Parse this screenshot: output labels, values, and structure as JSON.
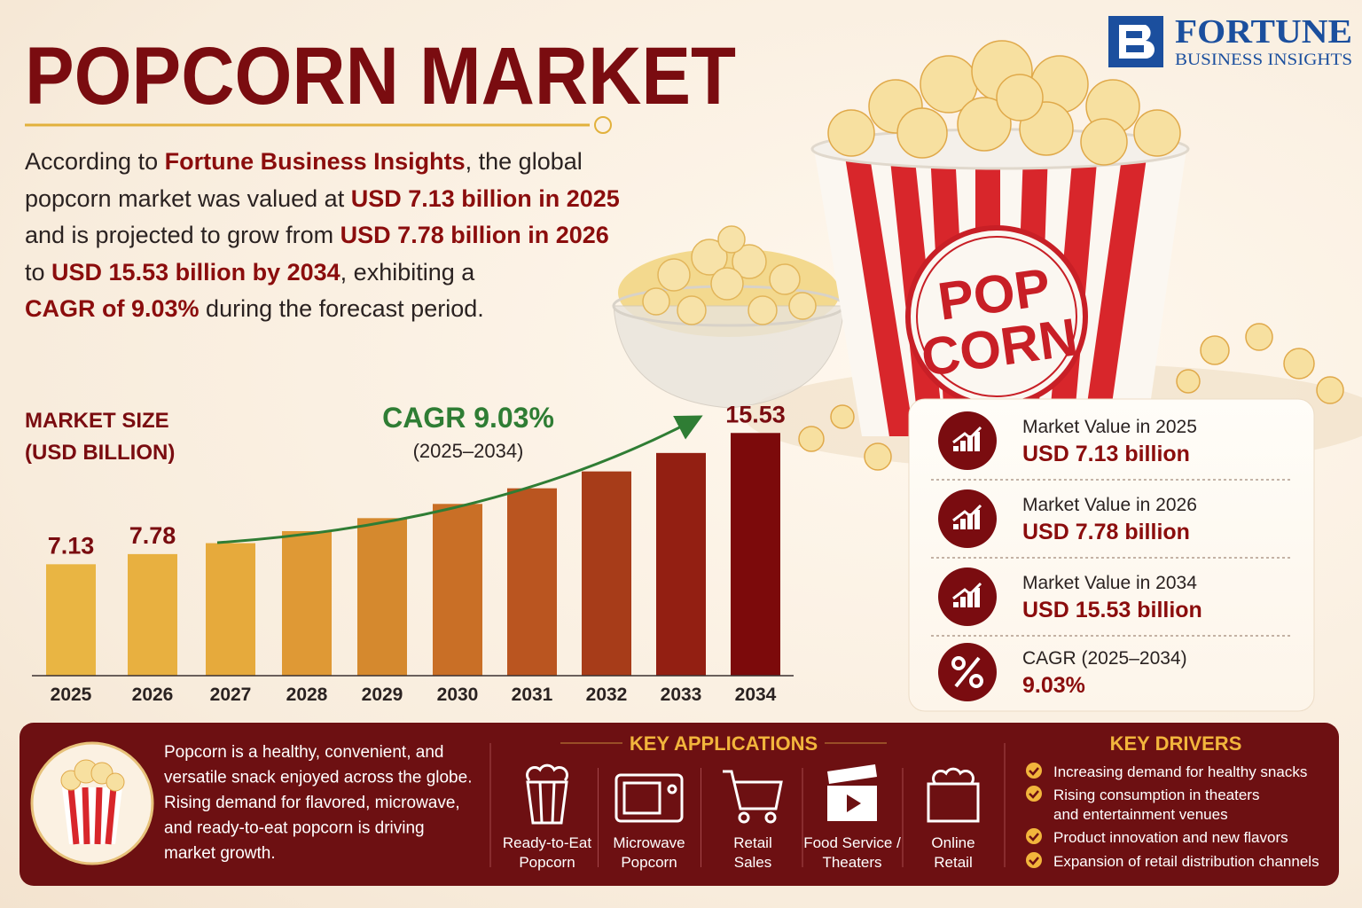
{
  "header": {
    "title": "POPCORN MARKET"
  },
  "logo": {
    "name": "FORTUNE",
    "tagline": "BUSINESS INSIGHTS"
  },
  "intro": [
    [
      {
        "text": "According to "
      },
      {
        "text": "Fortune Business Insights",
        "highlight": true
      },
      {
        "text": ", the global"
      }
    ],
    [
      {
        "text": "popcorn market was valued at "
      },
      {
        "text": "USD 7.13 billion in 2025",
        "highlight": true
      }
    ],
    [
      {
        "text": "and is projected to grow from "
      },
      {
        "text": "USD 7.78 billion in 2026",
        "highlight": true
      }
    ],
    [
      {
        "text": "to "
      },
      {
        "text": "USD 15.53 billion by 2034",
        "highlight": true
      },
      {
        "text": ", exhibiting a"
      }
    ],
    [
      {
        "text": "CAGR of 9.03%",
        "highlight": true
      },
      {
        "text": " during the forecast period."
      }
    ]
  ],
  "image": {
    "bucket_text": [
      "POP",
      "CORN"
    ]
  },
  "chart_data": {
    "type": "bar",
    "y_label": [
      "MARKET SIZE",
      "(USD BILLION)"
    ],
    "categories": [
      "2025",
      "2026",
      "2027",
      "2028",
      "2029",
      "2030",
      "2031",
      "2032",
      "2033",
      "2034"
    ],
    "values": [
      7.13,
      7.78,
      8.48,
      9.25,
      10.08,
      10.99,
      11.99,
      13.07,
      14.25,
      15.53
    ],
    "colors": [
      "#e9b543",
      "#e8b040",
      "#e6aa3c",
      "#df9935",
      "#d5892e",
      "#c96f26",
      "#ba5520",
      "#a73c19",
      "#931f12",
      "#7c0a0b"
    ],
    "show_value_labels": [
      true,
      true,
      false,
      false,
      false,
      false,
      false,
      false,
      false,
      true
    ],
    "ylim": [
      0,
      16
    ],
    "annotation": {
      "title": "CAGR 9.03%",
      "subtitle": "(2025–2034)"
    }
  },
  "highlights": [
    {
      "label": "Market Value in 2025",
      "value": "USD 7.13 billion",
      "icon": "chart"
    },
    {
      "label": "Market Value in 2026",
      "value": "USD 7.78 billion",
      "icon": "chart"
    },
    {
      "label": "Market Value in 2034",
      "value": "USD 15.53 billion",
      "icon": "chart"
    },
    {
      "label": "CAGR (2025–2034)",
      "value": "9.03%",
      "icon": "percent"
    }
  ],
  "footer": {
    "description": [
      "Popcorn is a healthy, convenient, and",
      "versatile snack enjoyed across the globe.",
      "Rising demand for flavored, microwave,",
      "and ready-to-eat popcorn is driving",
      "market growth."
    ],
    "applications": {
      "title": "KEY APPLICATIONS",
      "items": [
        [
          "Ready-to-Eat",
          "Popcorn"
        ],
        [
          "Microwave",
          "Popcorn"
        ],
        [
          "Retail",
          "Sales"
        ],
        [
          "Food Service /",
          "Theaters"
        ],
        [
          "Online",
          "Retail"
        ]
      ]
    },
    "drivers": {
      "title": "KEY DRIVERS",
      "items": [
        [
          "Increasing demand for healthy snacks"
        ],
        [
          "Rising consumption in theaters",
          "and entertainment venues"
        ],
        [
          "Product innovation and new flavors"
        ],
        [
          "Expansion of retail distribution channels"
        ]
      ]
    }
  }
}
